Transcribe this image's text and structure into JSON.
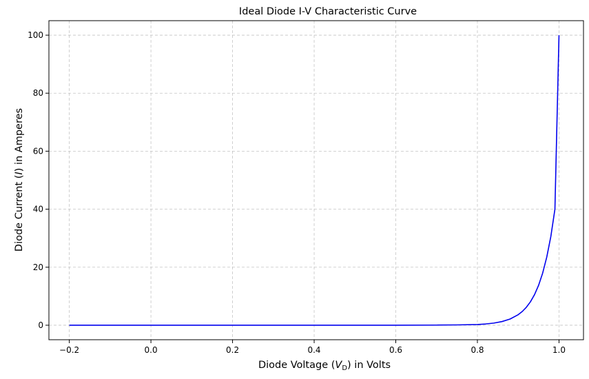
{
  "chart_data": {
    "type": "line",
    "title": "Ideal Diode I-V Characteristic Curve",
    "xlabel": {
      "prefix": "Diode Voltage (",
      "symbol": "V",
      "subscript": "D",
      "suffix": ") in Volts"
    },
    "ylabel": {
      "prefix": "Diode Current (",
      "symbol": "I",
      "suffix": ") in Amperes"
    },
    "xlim": [
      -0.25,
      1.06
    ],
    "ylim": [
      -5,
      105
    ],
    "xticks": [
      -0.2,
      0.0,
      0.2,
      0.4,
      0.6,
      0.8,
      1.0
    ],
    "xtick_labels": [
      "−0.2",
      "0.0",
      "0.2",
      "0.4",
      "0.6",
      "0.8",
      "1.0"
    ],
    "yticks": [
      0,
      20,
      40,
      60,
      80,
      100
    ],
    "ytick_labels": [
      "0",
      "20",
      "40",
      "60",
      "80",
      "100"
    ],
    "grid": true,
    "series": [
      {
        "color": "#0000ee",
        "x": [
          -0.2,
          0.0,
          0.2,
          0.4,
          0.6,
          0.7,
          0.75,
          0.8,
          0.82,
          0.84,
          0.86,
          0.88,
          0.9,
          0.91,
          0.92,
          0.93,
          0.94,
          0.95,
          0.96,
          0.97,
          0.98,
          0.99,
          1.0
        ],
        "y": [
          0.0,
          0.0,
          0.0,
          0.0,
          0.01,
          0.05,
          0.11,
          0.25,
          0.43,
          0.73,
          1.25,
          2.13,
          3.63,
          4.74,
          6.19,
          8.08,
          10.55,
          13.77,
          18.0,
          23.5,
          30.6,
          40.0,
          100.0
        ]
      }
    ]
  }
}
